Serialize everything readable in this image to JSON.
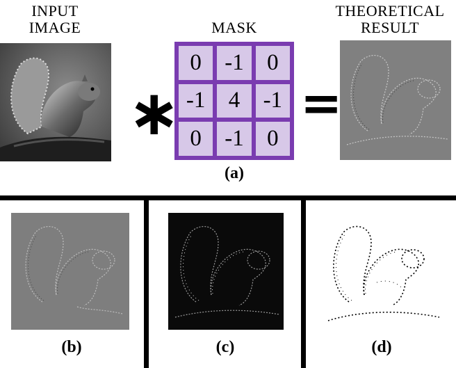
{
  "panel_a": {
    "input_label_line1": "INPUT",
    "input_label_line2": "IMAGE",
    "mask_label": "MASK",
    "result_label_line1": "THEORETICAL",
    "result_label_line2": "RESULT",
    "convolution_symbol": "∗",
    "equals_symbol": "=",
    "mask_cells": [
      "0",
      "-1",
      "0",
      "-1",
      "4",
      "-1",
      "0",
      "-1",
      "0"
    ],
    "caption": "(a)"
  },
  "panel_b": {
    "caption": "(b)"
  },
  "panel_c": {
    "caption": "(c)"
  },
  "panel_d": {
    "caption": "(d)"
  },
  "colors": {
    "mask_border": "#7a3cb0",
    "mask_cell": "#d7c8e8",
    "gray_background": "#808080",
    "dark_background": "#0a0a0a"
  }
}
